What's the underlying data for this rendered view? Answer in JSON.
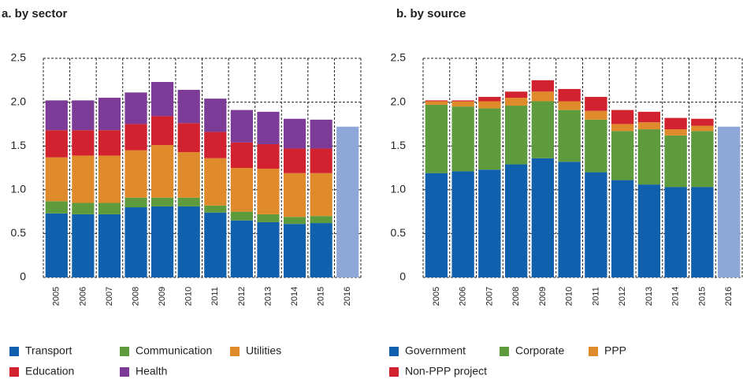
{
  "chart_data": [
    {
      "type": "bar",
      "stacked": true,
      "title": "a. by sector",
      "categories": [
        "2005",
        "2006",
        "2007",
        "2008",
        "2009",
        "2010",
        "2011",
        "2012",
        "2013",
        "2014",
        "2015",
        "2016"
      ],
      "ylim": [
        0,
        2.5
      ],
      "yticks": [
        {
          "value": 0,
          "label": "0"
        },
        0.5,
        {
          "value": 1,
          "label": "1.0"
        },
        1.5,
        {
          "value": 2,
          "label": "2.0"
        },
        2.5
      ],
      "grid": true,
      "series": [
        {
          "name": "Transport",
          "color": "#1160ad",
          "values": [
            0.73,
            0.72,
            0.72,
            0.8,
            0.81,
            0.81,
            0.74,
            0.65,
            0.63,
            0.61,
            0.62,
            null
          ]
        },
        {
          "name": "Communication",
          "color": "#5e9b3c",
          "values": [
            0.14,
            0.13,
            0.13,
            0.11,
            0.1,
            0.1,
            0.08,
            0.1,
            0.09,
            0.08,
            0.08,
            null
          ]
        },
        {
          "name": "Utilities",
          "color": "#e08b2b",
          "values": [
            0.5,
            0.54,
            0.54,
            0.54,
            0.6,
            0.52,
            0.54,
            0.5,
            0.52,
            0.5,
            0.49,
            null
          ]
        },
        {
          "name": "Education",
          "color": "#d2222f",
          "values": [
            0.31,
            0.29,
            0.29,
            0.3,
            0.33,
            0.33,
            0.3,
            0.29,
            0.28,
            0.28,
            0.28,
            null
          ]
        },
        {
          "name": "Health",
          "color": "#7c3b97",
          "values": [
            0.34,
            0.34,
            0.37,
            0.36,
            0.39,
            0.38,
            0.38,
            0.37,
            0.37,
            0.34,
            0.33,
            null
          ]
        },
        {
          "color": "#8fa7d8",
          "values": [
            null,
            null,
            null,
            null,
            null,
            null,
            null,
            null,
            null,
            null,
            null,
            1.72
          ]
        }
      ]
    },
    {
      "type": "bar",
      "stacked": true,
      "title": "b. by source",
      "categories": [
        "2005",
        "2006",
        "2007",
        "2008",
        "2009",
        "2010",
        "2011",
        "2012",
        "2013",
        "2014",
        "2015",
        "2016"
      ],
      "ylim": [
        0,
        2.5
      ],
      "yticks": [
        {
          "value": 0,
          "label": "0"
        },
        0.5,
        {
          "value": 1,
          "label": "1.0"
        },
        1.5,
        {
          "value": 2,
          "label": "2.0"
        },
        2.5
      ],
      "grid": true,
      "series": [
        {
          "name": "Government",
          "color": "#1160ad",
          "values": [
            1.19,
            1.21,
            1.23,
            1.29,
            1.36,
            1.32,
            1.2,
            1.11,
            1.06,
            1.03,
            1.03,
            null
          ]
        },
        {
          "name": "Corporate",
          "color": "#5e9b3c",
          "values": [
            0.78,
            0.74,
            0.7,
            0.67,
            0.65,
            0.59,
            0.6,
            0.56,
            0.63,
            0.59,
            0.64,
            null
          ]
        },
        {
          "name": "PPP",
          "color": "#e08b2b",
          "values": [
            0.04,
            0.06,
            0.08,
            0.09,
            0.11,
            0.1,
            0.1,
            0.08,
            0.08,
            0.07,
            0.06,
            null
          ]
        },
        {
          "name": "Non-PPP project",
          "color": "#d2222f",
          "values": [
            0.01,
            0.01,
            0.05,
            0.07,
            0.13,
            0.14,
            0.16,
            0.16,
            0.12,
            0.13,
            0.08,
            null
          ]
        },
        {
          "color": "#8fa7d8",
          "values": [
            null,
            null,
            null,
            null,
            null,
            null,
            null,
            null,
            null,
            null,
            null,
            1.72
          ]
        }
      ]
    }
  ]
}
